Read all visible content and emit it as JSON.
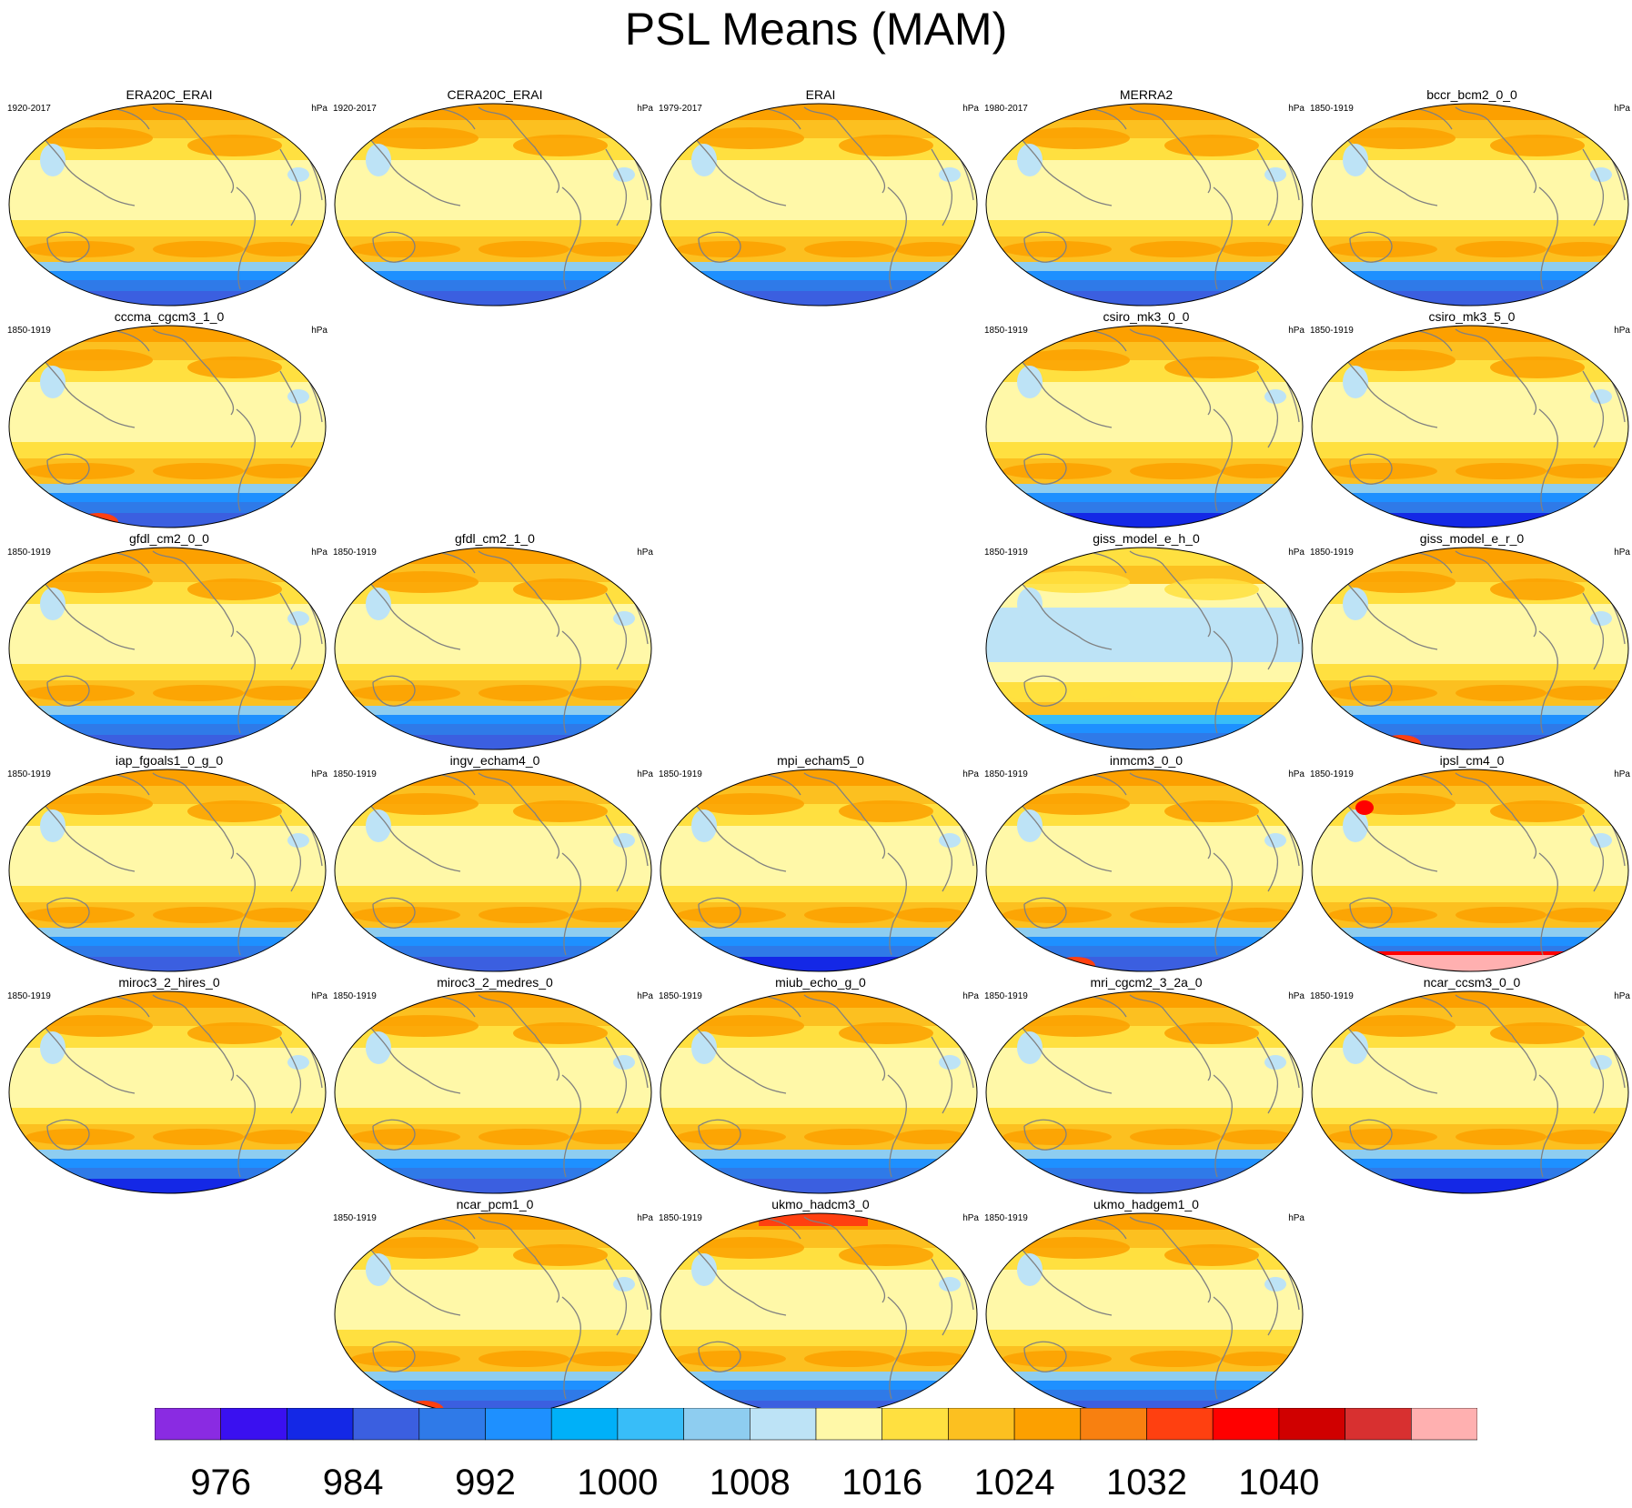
{
  "title": "PSL Means (MAM)",
  "unit": "hPa",
  "panels": [
    {
      "name": "ERA20C_ERAI",
      "period": "1920-2017",
      "row": 0,
      "col": 0,
      "style": "standard"
    },
    {
      "name": "CERA20C_ERAI",
      "period": "1920-2017",
      "row": 0,
      "col": 1,
      "style": "standard"
    },
    {
      "name": "ERAI",
      "period": "1979-2017",
      "row": 0,
      "col": 2,
      "style": "standard"
    },
    {
      "name": "MERRA2",
      "period": "1980-2017",
      "row": 0,
      "col": 3,
      "style": "standard"
    },
    {
      "name": "bccr_bcm2_0_0",
      "period": "1850-1919",
      "row": 0,
      "col": 4,
      "style": "standard"
    },
    {
      "name": "cccma_cgcm3_1_0",
      "period": "1850-1919",
      "row": 1,
      "col": 0,
      "style": "red-antarctic"
    },
    {
      "name": "csiro_mk3_0_0",
      "period": "1850-1919",
      "row": 1,
      "col": 3,
      "style": "deep-blue"
    },
    {
      "name": "csiro_mk3_5_0",
      "period": "1850-1919",
      "row": 1,
      "col": 4,
      "style": "deep-blue"
    },
    {
      "name": "gfdl_cm2_0_0",
      "period": "1850-1919",
      "row": 2,
      "col": 0,
      "style": "standard"
    },
    {
      "name": "gfdl_cm2_1_0",
      "period": "1850-1919",
      "row": 2,
      "col": 1,
      "style": "standard"
    },
    {
      "name": "giss_model_e_h_0",
      "period": "1850-1919",
      "row": 2,
      "col": 3,
      "style": "low-blue"
    },
    {
      "name": "giss_model_e_r_0",
      "period": "1850-1919",
      "row": 2,
      "col": 4,
      "style": "red-antarctic"
    },
    {
      "name": "iap_fgoals1_0_g_0",
      "period": "1850-1919",
      "row": 3,
      "col": 0,
      "style": "standard"
    },
    {
      "name": "ingv_echam4_0",
      "period": "1850-1919",
      "row": 3,
      "col": 1,
      "style": "standard"
    },
    {
      "name": "mpi_echam5_0",
      "period": "1850-1919",
      "row": 3,
      "col": 2,
      "style": "deep-blue"
    },
    {
      "name": "inmcm3_0_0",
      "period": "1850-1919",
      "row": 3,
      "col": 3,
      "style": "red-antarctic"
    },
    {
      "name": "ipsl_cm4_0",
      "period": "1850-1919",
      "row": 3,
      "col": 4,
      "style": "pink-antarctic"
    },
    {
      "name": "miroc3_2_hires_0",
      "period": "1850-1919",
      "row": 4,
      "col": 0,
      "style": "deep-blue"
    },
    {
      "name": "miroc3_2_medres_0",
      "period": "1850-1919",
      "row": 4,
      "col": 1,
      "style": "standard"
    },
    {
      "name": "miub_echo_g_0",
      "period": "1850-1919",
      "row": 4,
      "col": 2,
      "style": "standard"
    },
    {
      "name": "mri_cgcm2_3_2a_0",
      "period": "1850-1919",
      "row": 4,
      "col": 3,
      "style": "standard"
    },
    {
      "name": "ncar_ccsm3_0_0",
      "period": "1850-1919",
      "row": 4,
      "col": 4,
      "style": "deep-blue"
    },
    {
      "name": "ncar_pcm1_0",
      "period": "1850-1919",
      "row": 5,
      "col": 1,
      "style": "red-antarctic"
    },
    {
      "name": "ukmo_hadcm3_0",
      "period": "1850-1919",
      "row": 5,
      "col": 2,
      "style": "high-arctic"
    },
    {
      "name": "ukmo_hadgem1_0",
      "period": "1850-1919",
      "row": 5,
      "col": 3,
      "style": "standard"
    }
  ],
  "colorbar": {
    "colors": [
      "#8a2be2",
      "#3a10f0",
      "#1428e6",
      "#3b5fe0",
      "#2f7ae8",
      "#1e90ff",
      "#00b0f8",
      "#38bdf8",
      "#8ecdf0",
      "#bde3f6",
      "#fff8a8",
      "#ffe040",
      "#fcc020",
      "#fca000",
      "#f88010",
      "#ff4010",
      "#ff0000",
      "#d00000",
      "#d83030",
      "#ffb0b0"
    ],
    "tick_labels": [
      "976",
      "984",
      "992",
      "1000",
      "1008",
      "1016",
      "1024",
      "1032",
      "1040"
    ],
    "tick_positions": [
      1,
      3,
      5,
      7,
      9,
      11,
      13,
      15,
      17
    ]
  }
}
